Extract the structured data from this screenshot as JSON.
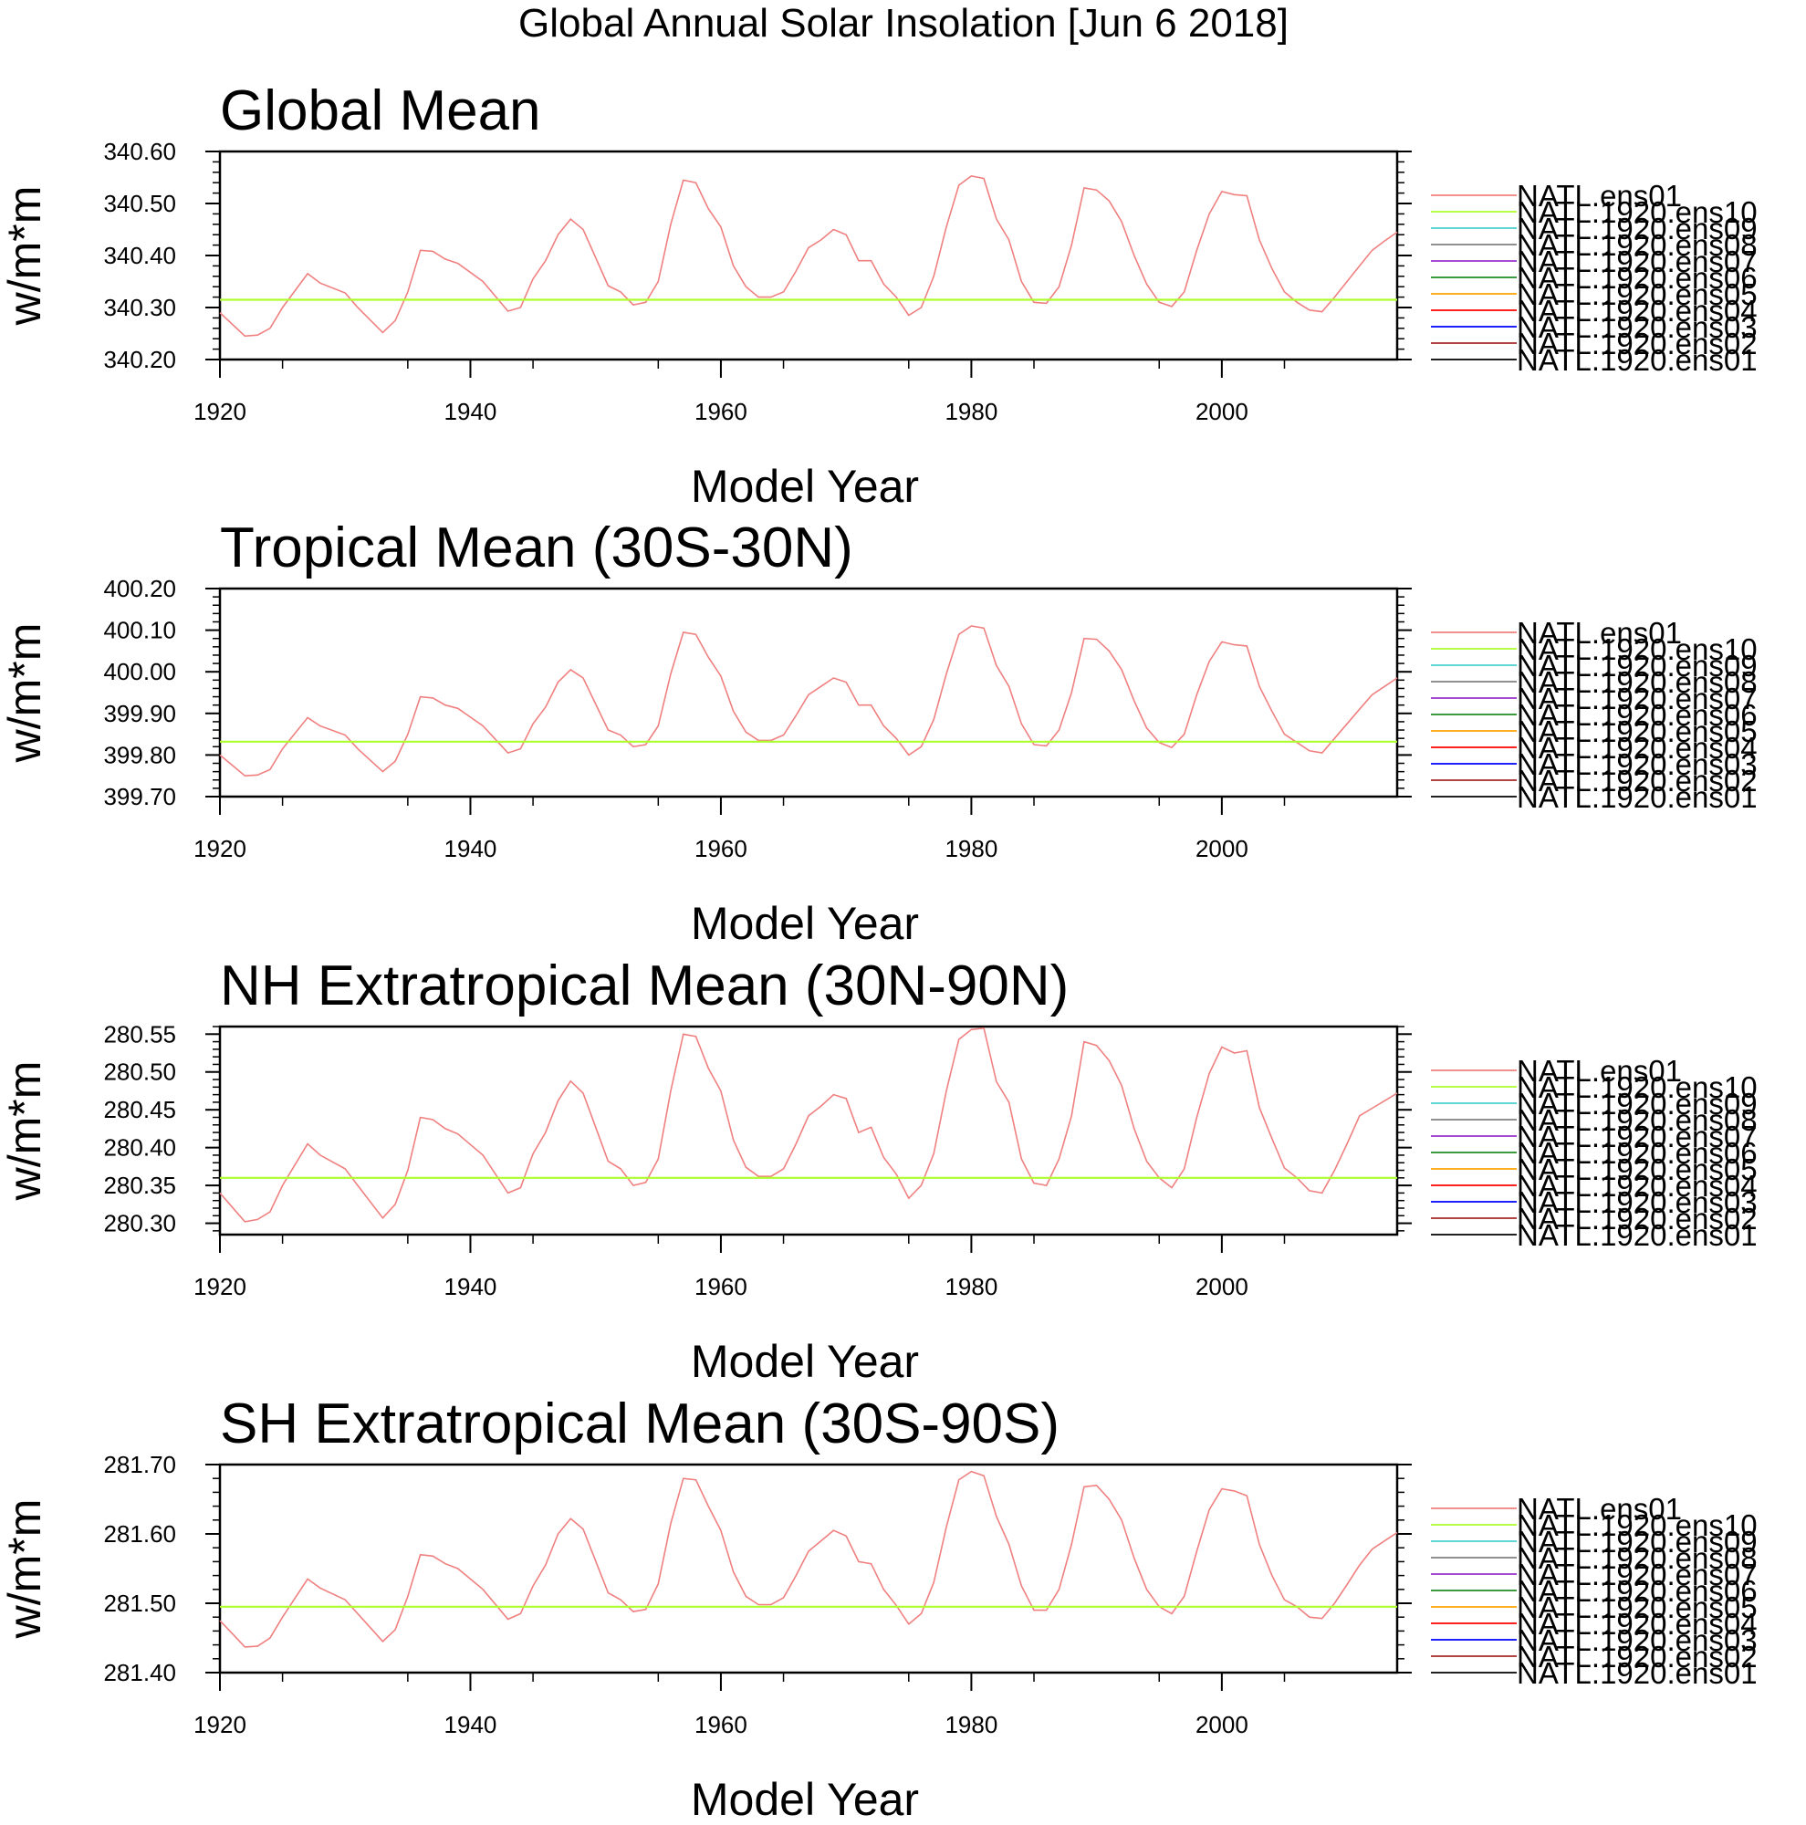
{
  "figure_title": "Global Annual Solar Insolation [Jun  6 2018]",
  "legend_entries": [
    {
      "label": "NATL.ens01",
      "color": "#f08080"
    },
    {
      "label": "NATL.1920.ens10",
      "color": "#adff2f"
    },
    {
      "label": "NATL.1920.ens09",
      "color": "#48d1cc"
    },
    {
      "label": "NATL.1920.ens08",
      "color": "#808080"
    },
    {
      "label": "NATL.1920.ens07",
      "color": "#9932cc"
    },
    {
      "label": "NATL.1920.ens06",
      "color": "#228b22"
    },
    {
      "label": "NATL.1920.ens05",
      "color": "#ffa500"
    },
    {
      "label": "NATL.1920.ens04",
      "color": "#ff0000"
    },
    {
      "label": "NATL.1920.ens03",
      "color": "#0000ff"
    },
    {
      "label": "NATL.1920.ens02",
      "color": "#a52a2a"
    },
    {
      "label": "NATL.1920.ens01",
      "color": "#000000"
    }
  ],
  "chart_data": [
    {
      "type": "line",
      "title": "Global Mean",
      "xlabel": "Model Year",
      "ylabel": "w/m*m",
      "xlim": [
        1920,
        2014
      ],
      "ylim": [
        340.2,
        340.6
      ],
      "yticks": [
        "340.20",
        "340.30",
        "340.40",
        "340.50",
        "340.60"
      ],
      "xticks": [
        "1920",
        "1940",
        "1960",
        "1980",
        "2000"
      ],
      "ytick_values": [
        340.2,
        340.3,
        340.4,
        340.5,
        340.6
      ],
      "xtick_values": [
        1920,
        1940,
        1960,
        1980,
        2000
      ],
      "ytick_decimals": 2,
      "series": [
        {
          "name": "NATL.ens01",
          "x": [
            1920,
            1922,
            1923,
            1924,
            1925,
            1927,
            1928,
            1930,
            1931,
            1933,
            1934,
            1935,
            1936,
            1937,
            1938,
            1939,
            1941,
            1943,
            1944,
            1945,
            1946,
            1947,
            1948,
            1949,
            1951,
            1952,
            1953,
            1954,
            1955,
            1956,
            1957,
            1958,
            1959,
            1960,
            1961,
            1962,
            1963,
            1964,
            1965,
            1966,
            1967,
            1968,
            1969,
            1970,
            1971,
            1972,
            1973,
            1974,
            1975,
            1976,
            1977,
            1978,
            1979,
            1980,
            1981,
            1982,
            1983,
            1984,
            1985,
            1986,
            1987,
            1988,
            1989,
            1990,
            1991,
            1992,
            1993,
            1994,
            1995,
            1996,
            1997,
            1998,
            1999,
            2000,
            2001,
            2002,
            2003,
            2004,
            2005,
            2006,
            2007,
            2008,
            2009,
            2010,
            2011,
            2012,
            2013,
            2014
          ],
          "values": [
            340.29,
            340.245,
            340.247,
            340.26,
            340.3,
            340.365,
            340.347,
            340.328,
            340.3,
            340.252,
            340.275,
            340.33,
            340.41,
            340.408,
            340.393,
            340.385,
            340.35,
            340.293,
            340.3,
            340.355,
            340.39,
            340.44,
            340.47,
            340.45,
            340.342,
            340.33,
            340.305,
            340.31,
            340.35,
            340.46,
            340.545,
            340.54,
            340.49,
            340.455,
            340.38,
            340.34,
            340.32,
            340.32,
            340.33,
            340.37,
            340.415,
            340.43,
            340.45,
            340.44,
            340.39,
            340.39,
            340.345,
            340.32,
            340.285,
            340.3,
            340.36,
            340.455,
            340.535,
            340.553,
            340.548,
            340.47,
            340.43,
            340.35,
            340.31,
            340.308,
            340.34,
            340.42,
            340.53,
            340.526,
            340.505,
            340.465,
            340.4,
            340.345,
            340.31,
            340.302,
            340.33,
            340.41,
            340.48,
            340.523,
            340.517,
            340.515,
            340.43,
            340.375,
            340.33,
            340.31,
            340.295,
            340.292,
            340.32,
            340.35,
            340.38,
            340.41,
            340.428,
            340.445
          ]
        },
        {
          "name": "NATL.1920.ens10",
          "x": [
            1920,
            2014
          ],
          "values": [
            340.315,
            340.315
          ]
        }
      ]
    },
    {
      "type": "line",
      "title": "Tropical Mean (30S-30N)",
      "xlabel": "Model Year",
      "ylabel": "w/m*m",
      "xlim": [
        1920,
        2014
      ],
      "ylim": [
        399.7,
        400.2
      ],
      "yticks": [
        "399.70",
        "399.80",
        "399.90",
        "400.00",
        "400.10",
        "400.20"
      ],
      "xticks": [
        "1920",
        "1940",
        "1960",
        "1980",
        "2000"
      ],
      "ytick_values": [
        399.7,
        399.8,
        399.9,
        400.0,
        400.1,
        400.2
      ],
      "xtick_values": [
        1920,
        1940,
        1960,
        1980,
        2000
      ],
      "ytick_decimals": 2,
      "series": [
        {
          "name": "NATL.ens01",
          "x": [
            1920,
            1922,
            1923,
            1924,
            1925,
            1927,
            1928,
            1930,
            1931,
            1933,
            1934,
            1935,
            1936,
            1937,
            1938,
            1939,
            1941,
            1943,
            1944,
            1945,
            1946,
            1947,
            1948,
            1949,
            1951,
            1952,
            1953,
            1954,
            1955,
            1956,
            1957,
            1958,
            1959,
            1960,
            1961,
            1962,
            1963,
            1964,
            1965,
            1966,
            1967,
            1968,
            1969,
            1970,
            1971,
            1972,
            1973,
            1974,
            1975,
            1976,
            1977,
            1978,
            1979,
            1980,
            1981,
            1982,
            1983,
            1984,
            1985,
            1986,
            1987,
            1988,
            1989,
            1990,
            1991,
            1992,
            1993,
            1994,
            1995,
            1996,
            1997,
            1998,
            1999,
            2000,
            2001,
            2002,
            2003,
            2004,
            2005,
            2006,
            2007,
            2008,
            2009,
            2010,
            2011,
            2012,
            2013,
            2014
          ],
          "values": [
            399.8,
            399.75,
            399.752,
            399.765,
            399.815,
            399.89,
            399.87,
            399.848,
            399.815,
            399.76,
            399.785,
            399.85,
            399.94,
            399.937,
            399.92,
            399.912,
            399.87,
            399.805,
            399.815,
            399.875,
            399.915,
            399.975,
            400.005,
            399.985,
            399.86,
            399.848,
            399.82,
            399.825,
            399.87,
            399.995,
            400.095,
            400.09,
            400.035,
            399.99,
            399.905,
            399.855,
            399.835,
            399.835,
            399.848,
            399.895,
            399.945,
            399.965,
            399.985,
            399.975,
            399.92,
            399.92,
            399.87,
            399.84,
            399.8,
            399.82,
            399.885,
            399.995,
            400.09,
            400.11,
            400.105,
            400.015,
            399.965,
            399.875,
            399.825,
            399.822,
            399.86,
            399.95,
            400.08,
            400.078,
            400.05,
            400.005,
            399.93,
            399.865,
            399.83,
            399.818,
            399.85,
            399.945,
            400.025,
            400.072,
            400.065,
            400.062,
            399.965,
            399.905,
            399.85,
            399.83,
            399.81,
            399.805,
            399.84,
            399.875,
            399.91,
            399.945,
            399.965,
            399.985
          ]
        },
        {
          "name": "NATL.1920.ens10",
          "x": [
            1920,
            2014
          ],
          "values": [
            399.832,
            399.832
          ]
        }
      ]
    },
    {
      "type": "line",
      "title": "NH Extratropical Mean (30N-90N)",
      "xlabel": "Model Year",
      "ylabel": "w/m*m",
      "xlim": [
        1920,
        2014
      ],
      "ylim": [
        280.285,
        280.56
      ],
      "yticks": [
        "280.30",
        "280.35",
        "280.40",
        "280.45",
        "280.50",
        "280.55"
      ],
      "xticks": [
        "1920",
        "1940",
        "1960",
        "1980",
        "2000"
      ],
      "ytick_values": [
        280.3,
        280.35,
        280.4,
        280.45,
        280.5,
        280.55
      ],
      "xtick_values": [
        1920,
        1940,
        1960,
        1980,
        2000
      ],
      "ytick_decimals": 2,
      "series": [
        {
          "name": "NATL.ens01",
          "x": [
            1920,
            1922,
            1923,
            1924,
            1925,
            1927,
            1928,
            1930,
            1931,
            1933,
            1934,
            1935,
            1936,
            1937,
            1938,
            1939,
            1941,
            1943,
            1944,
            1945,
            1946,
            1947,
            1948,
            1949,
            1951,
            1952,
            1953,
            1954,
            1955,
            1956,
            1957,
            1958,
            1959,
            1960,
            1961,
            1962,
            1963,
            1964,
            1965,
            1966,
            1967,
            1968,
            1969,
            1970,
            1971,
            1972,
            1973,
            1974,
            1975,
            1976,
            1977,
            1978,
            1979,
            1980,
            1981,
            1982,
            1983,
            1984,
            1985,
            1986,
            1987,
            1988,
            1989,
            1990,
            1991,
            1992,
            1993,
            1994,
            1995,
            1996,
            1997,
            1998,
            1999,
            2000,
            2001,
            2002,
            2003,
            2004,
            2005,
            2006,
            2007,
            2008,
            2009,
            2010,
            2011,
            2012,
            2013,
            2014
          ],
          "values": [
            280.34,
            280.302,
            280.305,
            280.315,
            280.35,
            280.405,
            280.39,
            280.372,
            280.35,
            280.307,
            280.325,
            280.37,
            280.44,
            280.437,
            280.425,
            280.418,
            280.39,
            280.34,
            280.347,
            280.392,
            280.42,
            280.462,
            280.488,
            280.472,
            280.382,
            280.372,
            280.35,
            280.354,
            280.385,
            280.475,
            280.55,
            280.547,
            280.505,
            280.475,
            280.41,
            280.374,
            280.362,
            280.362,
            280.372,
            280.405,
            280.442,
            280.455,
            280.47,
            280.465,
            280.42,
            280.427,
            280.387,
            280.365,
            280.333,
            280.35,
            280.392,
            280.475,
            280.543,
            280.556,
            280.558,
            280.487,
            280.46,
            280.385,
            280.353,
            280.35,
            280.385,
            280.442,
            280.54,
            280.535,
            280.515,
            280.482,
            280.425,
            280.382,
            280.36,
            280.347,
            280.372,
            280.44,
            280.498,
            280.533,
            280.525,
            280.528,
            280.453,
            280.412,
            280.373,
            280.36,
            280.343,
            280.34,
            280.37,
            280.405,
            280.442,
            280.452,
            280.462,
            280.472
          ]
        },
        {
          "name": "NATL.1920.ens10",
          "x": [
            1920,
            2014
          ],
          "values": [
            280.36,
            280.36
          ]
        }
      ]
    },
    {
      "type": "line",
      "title": "SH Extratropical Mean (30S-90S)",
      "xlabel": "Model Year",
      "ylabel": "w/m*m",
      "xlim": [
        1920,
        2014
      ],
      "ylim": [
        281.4,
        281.7
      ],
      "yticks": [
        "281.40",
        "281.50",
        "281.60",
        "281.70"
      ],
      "xticks": [
        "1920",
        "1940",
        "1960",
        "1980",
        "2000"
      ],
      "ytick_values": [
        281.4,
        281.5,
        281.6,
        281.7
      ],
      "xtick_values": [
        1920,
        1940,
        1960,
        1980,
        2000
      ],
      "ytick_decimals": 2,
      "series": [
        {
          "name": "NATL.ens01",
          "x": [
            1920,
            1922,
            1923,
            1924,
            1925,
            1927,
            1928,
            1930,
            1931,
            1933,
            1934,
            1935,
            1936,
            1937,
            1938,
            1939,
            1941,
            1943,
            1944,
            1945,
            1946,
            1947,
            1948,
            1949,
            1951,
            1952,
            1953,
            1954,
            1955,
            1956,
            1957,
            1958,
            1959,
            1960,
            1961,
            1962,
            1963,
            1964,
            1965,
            1966,
            1967,
            1968,
            1969,
            1970,
            1971,
            1972,
            1973,
            1974,
            1975,
            1976,
            1977,
            1978,
            1979,
            1980,
            1981,
            1982,
            1983,
            1984,
            1985,
            1986,
            1987,
            1988,
            1989,
            1990,
            1991,
            1992,
            1993,
            1994,
            1995,
            1996,
            1997,
            1998,
            1999,
            2000,
            2001,
            2002,
            2003,
            2004,
            2005,
            2006,
            2007,
            2008,
            2009,
            2010,
            2011,
            2012,
            2013,
            2014
          ],
          "values": [
            281.475,
            281.437,
            281.438,
            281.45,
            281.48,
            281.535,
            281.522,
            281.505,
            281.485,
            281.445,
            281.462,
            281.51,
            281.57,
            281.568,
            281.557,
            281.55,
            281.52,
            281.477,
            281.485,
            281.525,
            281.555,
            281.6,
            281.622,
            281.607,
            281.515,
            281.505,
            281.488,
            281.491,
            281.528,
            281.615,
            281.68,
            281.678,
            281.64,
            281.605,
            281.545,
            281.51,
            281.498,
            281.498,
            281.508,
            281.54,
            281.575,
            281.59,
            281.605,
            281.597,
            281.56,
            281.557,
            281.52,
            281.497,
            281.47,
            281.485,
            281.53,
            281.61,
            281.678,
            281.69,
            281.684,
            281.625,
            281.585,
            281.525,
            281.49,
            281.49,
            281.52,
            281.585,
            281.668,
            281.67,
            281.65,
            281.62,
            281.565,
            281.52,
            281.495,
            281.485,
            281.51,
            281.575,
            281.635,
            281.665,
            281.662,
            281.655,
            281.585,
            281.54,
            281.505,
            281.495,
            281.48,
            281.478,
            281.5,
            281.527,
            281.555,
            281.578,
            281.59,
            281.602
          ]
        },
        {
          "name": "NATL.1920.ens10",
          "x": [
            1920,
            2014
          ],
          "values": [
            281.495,
            281.495
          ]
        }
      ]
    }
  ]
}
